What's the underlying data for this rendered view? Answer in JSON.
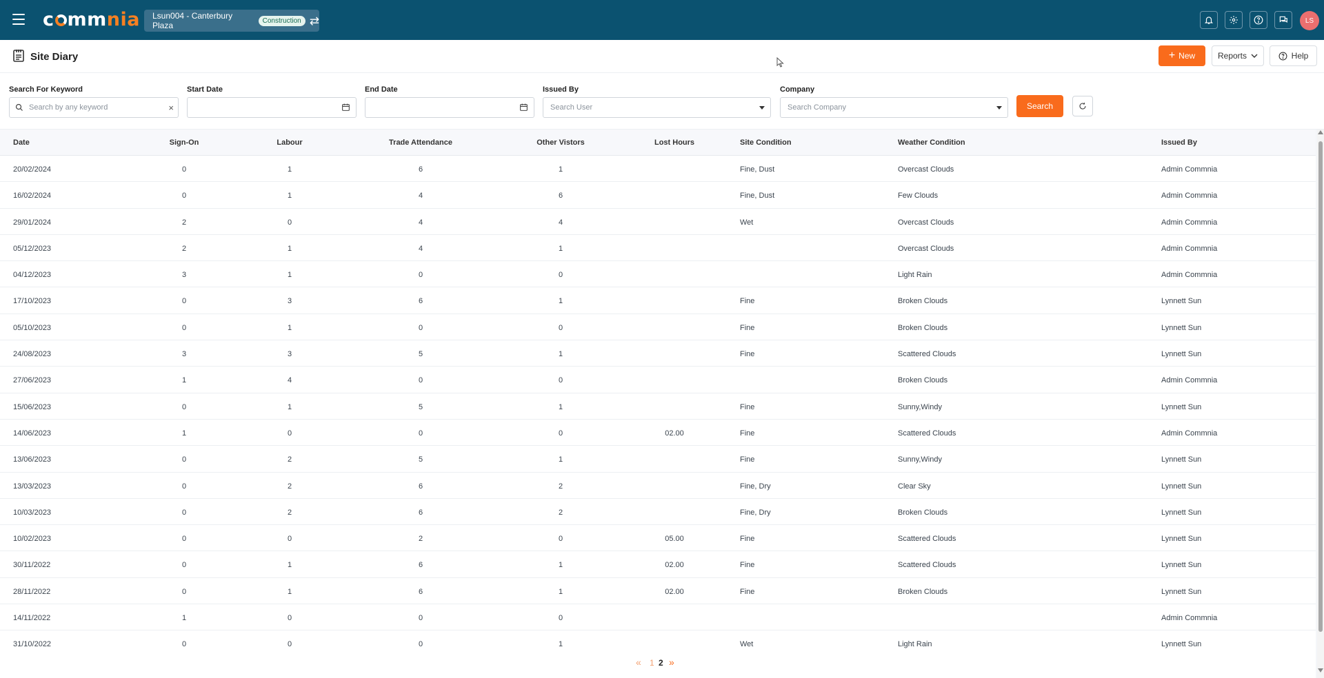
{
  "app": {
    "logo_text": "commnia",
    "project": "Lsun004 - Canterbury Plaza",
    "project_tag": "Construction",
    "user_initials": "LS"
  },
  "colors": {
    "topbar": "#0b5270",
    "accent": "#f96b1c",
    "avatar": "#ea6f6f"
  },
  "icons": [
    "menu-icon",
    "swap-icon",
    "bell-icon",
    "gear-icon",
    "help-circle-icon",
    "chat-icon",
    "diary-icon",
    "search-icon",
    "close-icon",
    "calendar-icon",
    "reset-icon"
  ],
  "page": {
    "title": "Site Diary",
    "new_label": "New",
    "reports_label": "Reports",
    "help_label": "Help"
  },
  "filters": {
    "keyword_label": "Search For Keyword",
    "keyword_placeholder": "Search by any keyword",
    "start_label": "Start Date",
    "end_label": "End Date",
    "issued_label": "Issued By",
    "issued_placeholder": "Search User",
    "company_label": "Company",
    "company_placeholder": "Search Company",
    "search_label": "Search"
  },
  "table": {
    "headers": {
      "date": "Date",
      "sign_on": "Sign-On",
      "labour": "Labour",
      "trade": "Trade Attendance",
      "visitors": "Other Vistors",
      "lost": "Lost Hours",
      "site": "Site Condition",
      "weather": "Weather Condition",
      "issued": "Issued By"
    },
    "rows": [
      {
        "date": "20/02/2024",
        "sign_on": "0",
        "labour": "1",
        "trade": "6",
        "visitors": "1",
        "lost": "",
        "site": "Fine, Dust",
        "weather": "Overcast Clouds",
        "issued": "Admin Commnia"
      },
      {
        "date": "16/02/2024",
        "sign_on": "0",
        "labour": "1",
        "trade": "4",
        "visitors": "6",
        "lost": "",
        "site": "Fine, Dust",
        "weather": "Few Clouds",
        "issued": "Admin Commnia"
      },
      {
        "date": "29/01/2024",
        "sign_on": "2",
        "labour": "0",
        "trade": "4",
        "visitors": "4",
        "lost": "",
        "site": "Wet",
        "weather": "Overcast Clouds",
        "issued": "Admin Commnia"
      },
      {
        "date": "05/12/2023",
        "sign_on": "2",
        "labour": "1",
        "trade": "4",
        "visitors": "1",
        "lost": "",
        "site": "",
        "weather": "Overcast Clouds",
        "issued": "Admin Commnia"
      },
      {
        "date": "04/12/2023",
        "sign_on": "3",
        "labour": "1",
        "trade": "0",
        "visitors": "0",
        "lost": "",
        "site": "",
        "weather": "Light Rain",
        "issued": "Admin Commnia"
      },
      {
        "date": "17/10/2023",
        "sign_on": "0",
        "labour": "3",
        "trade": "6",
        "visitors": "1",
        "lost": "",
        "site": "Fine",
        "weather": "Broken Clouds",
        "issued": "Lynnett Sun"
      },
      {
        "date": "05/10/2023",
        "sign_on": "0",
        "labour": "1",
        "trade": "0",
        "visitors": "0",
        "lost": "",
        "site": "Fine",
        "weather": "Broken Clouds",
        "issued": "Lynnett Sun"
      },
      {
        "date": "24/08/2023",
        "sign_on": "3",
        "labour": "3",
        "trade": "5",
        "visitors": "1",
        "lost": "",
        "site": "Fine",
        "weather": "Scattered Clouds",
        "issued": "Lynnett Sun"
      },
      {
        "date": "27/06/2023",
        "sign_on": "1",
        "labour": "4",
        "trade": "0",
        "visitors": "0",
        "lost": "",
        "site": "",
        "weather": "Broken Clouds",
        "issued": "Admin Commnia"
      },
      {
        "date": "15/06/2023",
        "sign_on": "0",
        "labour": "1",
        "trade": "5",
        "visitors": "1",
        "lost": "",
        "site": "Fine",
        "weather": "Sunny,Windy",
        "issued": "Lynnett Sun"
      },
      {
        "date": "14/06/2023",
        "sign_on": "1",
        "labour": "0",
        "trade": "0",
        "visitors": "0",
        "lost": "02.00",
        "site": "Fine",
        "weather": "Scattered Clouds",
        "issued": "Admin Commnia"
      },
      {
        "date": "13/06/2023",
        "sign_on": "0",
        "labour": "2",
        "trade": "5",
        "visitors": "1",
        "lost": "",
        "site": "Fine",
        "weather": "Sunny,Windy",
        "issued": "Lynnett Sun"
      },
      {
        "date": "13/03/2023",
        "sign_on": "0",
        "labour": "2",
        "trade": "6",
        "visitors": "2",
        "lost": "",
        "site": "Fine, Dry",
        "weather": "Clear Sky",
        "issued": "Lynnett Sun"
      },
      {
        "date": "10/03/2023",
        "sign_on": "0",
        "labour": "2",
        "trade": "6",
        "visitors": "2",
        "lost": "",
        "site": "Fine, Dry",
        "weather": "Broken Clouds",
        "issued": "Lynnett Sun"
      },
      {
        "date": "10/02/2023",
        "sign_on": "0",
        "labour": "0",
        "trade": "2",
        "visitors": "0",
        "lost": "05.00",
        "site": "Fine",
        "weather": "Scattered Clouds",
        "issued": "Lynnett Sun"
      },
      {
        "date": "30/11/2022",
        "sign_on": "0",
        "labour": "1",
        "trade": "6",
        "visitors": "1",
        "lost": "02.00",
        "site": "Fine",
        "weather": "Scattered Clouds",
        "issued": "Lynnett Sun"
      },
      {
        "date": "28/11/2022",
        "sign_on": "0",
        "labour": "1",
        "trade": "6",
        "visitors": "1",
        "lost": "02.00",
        "site": "Fine",
        "weather": "Broken Clouds",
        "issued": "Lynnett Sun"
      },
      {
        "date": "14/11/2022",
        "sign_on": "1",
        "labour": "0",
        "trade": "0",
        "visitors": "0",
        "lost": "",
        "site": "",
        "weather": "",
        "issued": "Admin Commnia"
      },
      {
        "date": "31/10/2022",
        "sign_on": "0",
        "labour": "0",
        "trade": "0",
        "visitors": "1",
        "lost": "",
        "site": "Wet",
        "weather": "Light Rain",
        "issued": "Lynnett Sun"
      }
    ]
  },
  "pagination": {
    "prev": "«",
    "pages": [
      "1",
      "2"
    ],
    "current": "2",
    "next": "»"
  }
}
